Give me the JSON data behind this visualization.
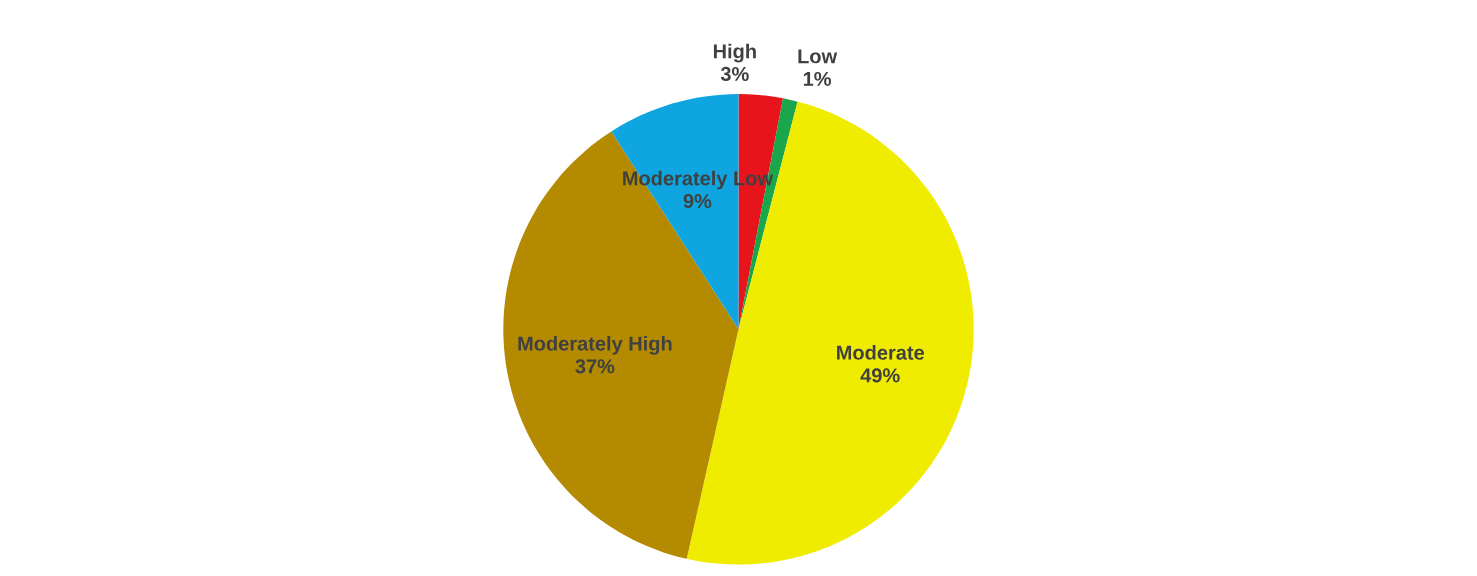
{
  "chart_data": {
    "type": "pie",
    "categories": [
      "High",
      "Low",
      "Moderate",
      "Moderately High",
      "Moderately Low"
    ],
    "values": [
      3,
      1,
      49,
      37,
      9
    ],
    "value_labels": [
      "3%",
      "1%",
      "49%",
      "37%",
      "9%"
    ],
    "colors": [
      "#e8141b",
      "#1aa64a",
      "#f0ec00",
      "#b38a00",
      "#0ea5e0"
    ]
  }
}
